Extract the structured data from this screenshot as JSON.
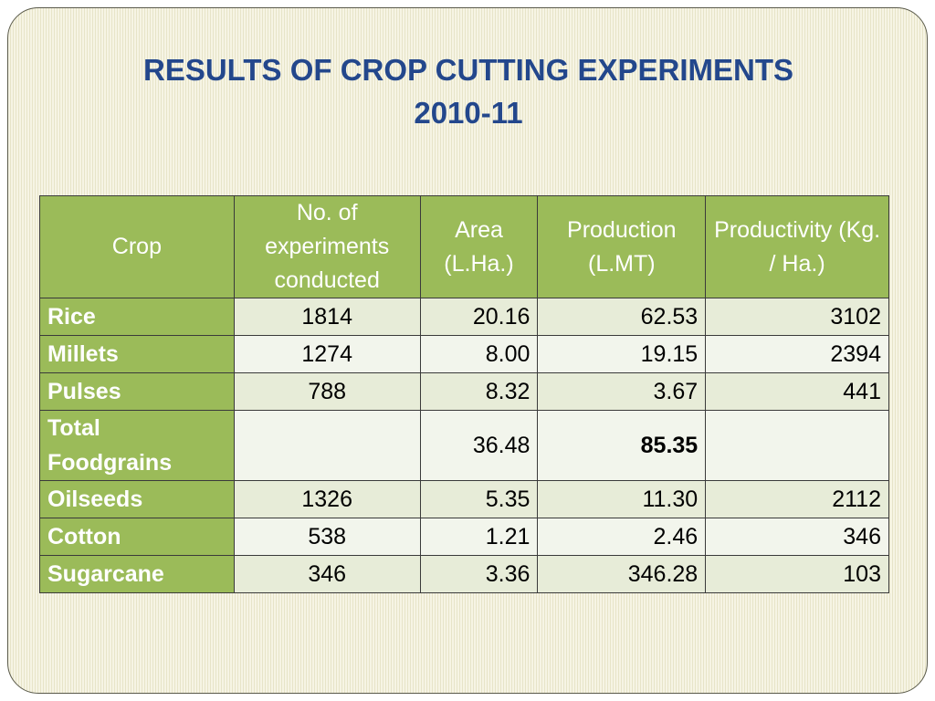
{
  "title": {
    "line1": "RESULTS OF CROP CUTTING EXPERIMENTS",
    "line2": "2010-11"
  },
  "table": {
    "headers": [
      "Crop",
      "No. of experiments conducted",
      "Area (L.Ha.)",
      "Production (L.MT)",
      "Productivity (Kg. / Ha.)"
    ],
    "rows": [
      {
        "crop": "Rice",
        "experiments": "1814",
        "area": "20.16",
        "production": "62.53",
        "productivity": "3102"
      },
      {
        "crop": "Millets",
        "experiments": "1274",
        "area": "8.00",
        "production": "19.15",
        "productivity": "2394"
      },
      {
        "crop": "Pulses",
        "experiments": "788",
        "area": "8.32",
        "production": "3.67",
        "productivity": "441"
      },
      {
        "crop": "Total Foodgrains",
        "experiments": "",
        "area": "36.48",
        "production": "85.35",
        "productivity": ""
      },
      {
        "crop": "Oilseeds",
        "experiments": "1326",
        "area": "5.35",
        "production": "11.30",
        "productivity": "2112"
      },
      {
        "crop": "Cotton",
        "experiments": "538",
        "area": "1.21",
        "production": "2.46",
        "productivity": "346"
      },
      {
        "crop": "Sugarcane",
        "experiments": "346",
        "area": "3.36",
        "production": "346.28",
        "productivity": "103"
      }
    ]
  },
  "colors": {
    "title": "#23478c",
    "header_fill": "#9bbb59",
    "row_band_dark": "#e7ecd8",
    "row_band_light": "#f2f5ec",
    "slide_background": "#f2f0dc"
  }
}
